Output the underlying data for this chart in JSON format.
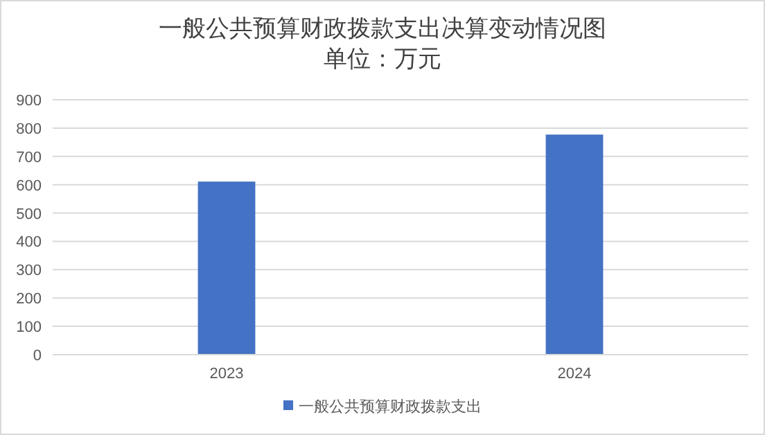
{
  "chart_data": {
    "type": "bar",
    "title": "一般公共预算财政拨款支出决算变动情况图",
    "subtitle": "单位：万元",
    "categories": [
      "2023",
      "2024"
    ],
    "series": [
      {
        "name": "一般公共预算财政拨款支出",
        "color": "#4472c4",
        "values": [
          611,
          777
        ]
      }
    ],
    "ylim": [
      0,
      900
    ],
    "yticks": [
      0,
      100,
      200,
      300,
      400,
      500,
      600,
      700,
      800,
      900
    ],
    "grid": "y",
    "legend": "bottom"
  }
}
